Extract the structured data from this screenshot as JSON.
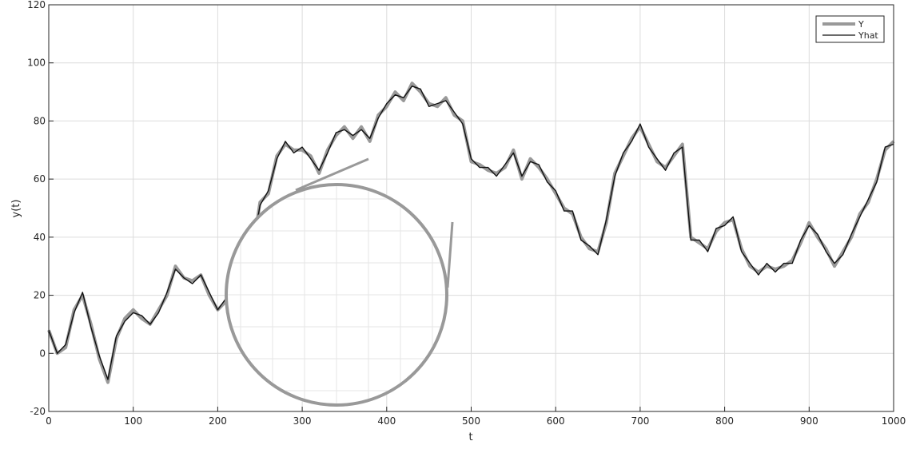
{
  "chart_data": {
    "type": "line",
    "title": "",
    "xlabel": "t",
    "ylabel": "y(t)",
    "xlim": [
      0,
      1000
    ],
    "ylim": [
      -20,
      120
    ],
    "xticks": [
      "0",
      "100",
      "200",
      "300",
      "400",
      "500",
      "600",
      "700",
      "800",
      "900",
      "1000"
    ],
    "yticks": [
      "-20",
      "0",
      "20",
      "40",
      "60",
      "80",
      "100",
      "120"
    ],
    "grid": true,
    "legend_position": "top-right",
    "x": [
      0,
      10,
      20,
      30,
      40,
      50,
      60,
      70,
      80,
      90,
      100,
      110,
      120,
      130,
      140,
      150,
      160,
      170,
      180,
      190,
      200,
      210,
      220,
      230,
      240,
      250,
      260,
      270,
      280,
      290,
      300,
      310,
      320,
      330,
      340,
      350,
      360,
      370,
      380,
      390,
      400,
      410,
      420,
      430,
      440,
      450,
      460,
      470,
      480,
      490,
      500,
      510,
      520,
      530,
      540,
      550,
      560,
      570,
      580,
      590,
      600,
      610,
      620,
      630,
      640,
      650,
      660,
      670,
      680,
      690,
      700,
      710,
      720,
      730,
      740,
      750,
      760,
      770,
      780,
      790,
      800,
      810,
      820,
      830,
      840,
      850,
      860,
      870,
      880,
      890,
      900,
      910,
      920,
      930,
      940,
      950,
      960,
      970,
      980,
      990,
      1000
    ],
    "series": [
      {
        "name": "Y",
        "color": "#999999",
        "values": [
          8,
          0,
          2,
          15,
          20,
          10,
          -2,
          -10,
          5,
          12,
          15,
          12,
          10,
          15,
          20,
          30,
          26,
          25,
          27,
          20,
          15,
          18,
          30,
          38,
          33,
          52,
          55,
          68,
          72,
          70,
          70,
          68,
          62,
          70,
          75,
          78,
          74,
          78,
          73,
          82,
          85,
          90,
          87,
          93,
          90,
          86,
          85,
          88,
          82,
          80,
          66,
          65,
          63,
          62,
          64,
          70,
          60,
          67,
          64,
          60,
          55,
          50,
          48,
          40,
          36,
          35,
          45,
          62,
          68,
          74,
          78,
          72,
          66,
          64,
          68,
          72,
          78,
          85,
          95,
          92,
          86,
          88,
          82,
          78,
          80,
          76,
          77,
          82,
          86,
          75,
          80,
          75,
          70,
          64,
          56,
          52,
          55,
          54,
          48,
          44,
          42
        ],
        "values_tail": [
          40,
          38,
          36,
          42,
          45,
          46,
          36,
          30,
          28,
          30,
          29,
          30,
          32,
          38,
          45,
          40,
          36,
          30,
          35,
          40,
          48,
          52,
          60,
          70,
          73
        ]
      },
      {
        "name": "Yhat",
        "color": "#111111",
        "values": [
          8,
          0,
          3,
          14,
          21,
          9,
          -1,
          -9,
          6,
          11,
          14,
          13,
          10,
          14,
          21,
          29,
          26,
          24,
          27,
          21,
          15,
          19,
          29,
          37,
          34,
          51,
          56,
          67,
          73,
          69,
          71,
          67,
          63,
          69,
          76,
          77,
          75,
          77,
          74,
          81,
          86,
          89,
          88,
          92,
          91,
          85,
          86,
          87,
          83,
          79,
          67,
          64,
          64,
          61,
          65,
          69,
          61,
          66,
          65,
          59,
          56,
          49,
          49,
          39,
          37,
          34,
          46,
          61,
          69,
          73,
          79,
          71,
          67,
          63,
          69,
          71,
          79,
          84,
          96,
          91,
          87,
          87,
          83,
          77,
          81,
          75,
          78,
          81,
          87,
          74,
          81,
          74,
          71,
          63,
          57,
          51,
          56,
          53,
          49,
          43,
          43
        ],
        "values_tail": [
          39,
          39,
          35,
          43,
          44,
          47,
          35,
          31,
          27,
          31,
          28,
          31,
          31,
          39,
          44,
          41,
          35,
          31,
          34,
          41,
          47,
          53,
          59,
          71,
          72
        ]
      }
    ]
  }
}
